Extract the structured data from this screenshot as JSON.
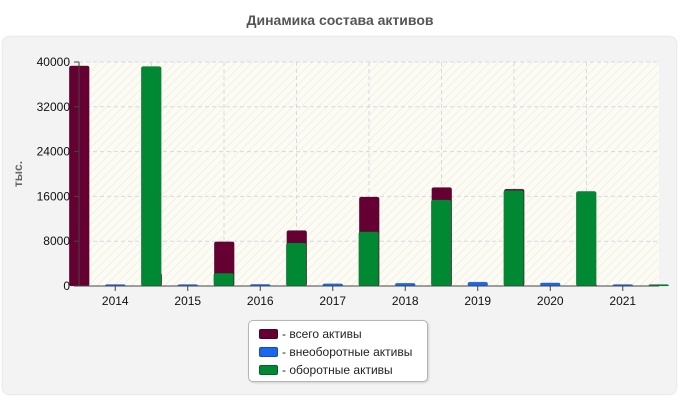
{
  "chart_data": {
    "type": "bar",
    "title": "Динамика состава активов",
    "ylabel": "тыс.",
    "xlabel": "",
    "categories": [
      "2014",
      "2015",
      "2016",
      "2017",
      "2018",
      "2019",
      "2020",
      "2021"
    ],
    "ylim": [
      0,
      40000
    ],
    "yticks": [
      "0",
      "8000",
      "16000",
      "24000",
      "32000",
      "40000"
    ],
    "grid": true,
    "legend_position": "bottom",
    "series": [
      {
        "name": "- всего активы",
        "color": "#660033",
        "values": [
          39300,
          2300,
          7900,
          9900,
          15900,
          17600,
          17300,
          100
        ]
      },
      {
        "name": "- внеоборотные активы",
        "color": "#1a66ee",
        "values": [
          200,
          150,
          300,
          400,
          500,
          700,
          550,
          100
        ]
      },
      {
        "name": "- оборотные активы",
        "color": "#008833",
        "values": [
          39200,
          2300,
          7700,
          9700,
          15400,
          17100,
          16900,
          100
        ]
      }
    ]
  }
}
